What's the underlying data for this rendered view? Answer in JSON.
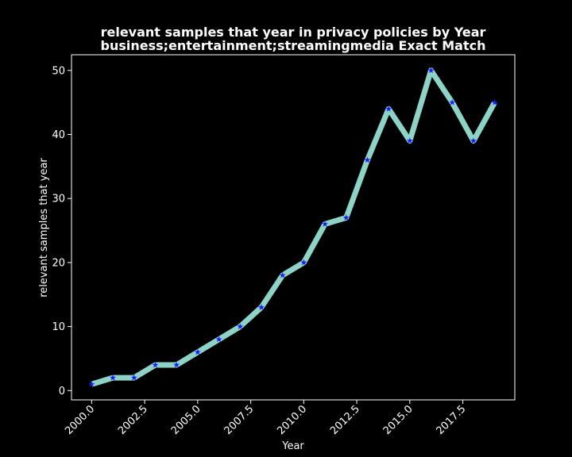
{
  "chart_data": {
    "type": "line",
    "title_line1": "relevant samples that year in privacy policies by Year",
    "title_line2": "business;entertainment;streamingmedia Exact Match",
    "xlabel": "Year",
    "ylabel": "relevant samples that year",
    "x": [
      2000,
      2001,
      2002,
      2003,
      2004,
      2005,
      2006,
      2007,
      2008,
      2009,
      2010,
      2011,
      2012,
      2013,
      2014,
      2015,
      2016,
      2017,
      2018,
      2019
    ],
    "series": [
      {
        "values": [
          1,
          2,
          2,
          4,
          4,
          6,
          8,
          10,
          13,
          18,
          20,
          26,
          27,
          36,
          44,
          39,
          50,
          45,
          39,
          45
        ],
        "line_color": "#8dd3c7",
        "marker_color": "#1a1aff",
        "marker": "star"
      }
    ],
    "xlim": [
      1999.05,
      2019.95
    ],
    "ylim": [
      -1.45,
      52.45
    ],
    "xticks": [
      2000,
      2002.5,
      2005,
      2007.5,
      2010,
      2012.5,
      2015,
      2017.5
    ],
    "xtick_labels": [
      "2000.0",
      "2002.5",
      "2005.0",
      "2007.5",
      "2010.0",
      "2012.5",
      "2015.0",
      "2017.5"
    ],
    "yticks": [
      0,
      10,
      20,
      30,
      40,
      50
    ],
    "ytick_labels": [
      "0",
      "10",
      "20",
      "30",
      "40",
      "50"
    ],
    "grid": false,
    "background": "#000000",
    "foreground": "#ffffff"
  }
}
